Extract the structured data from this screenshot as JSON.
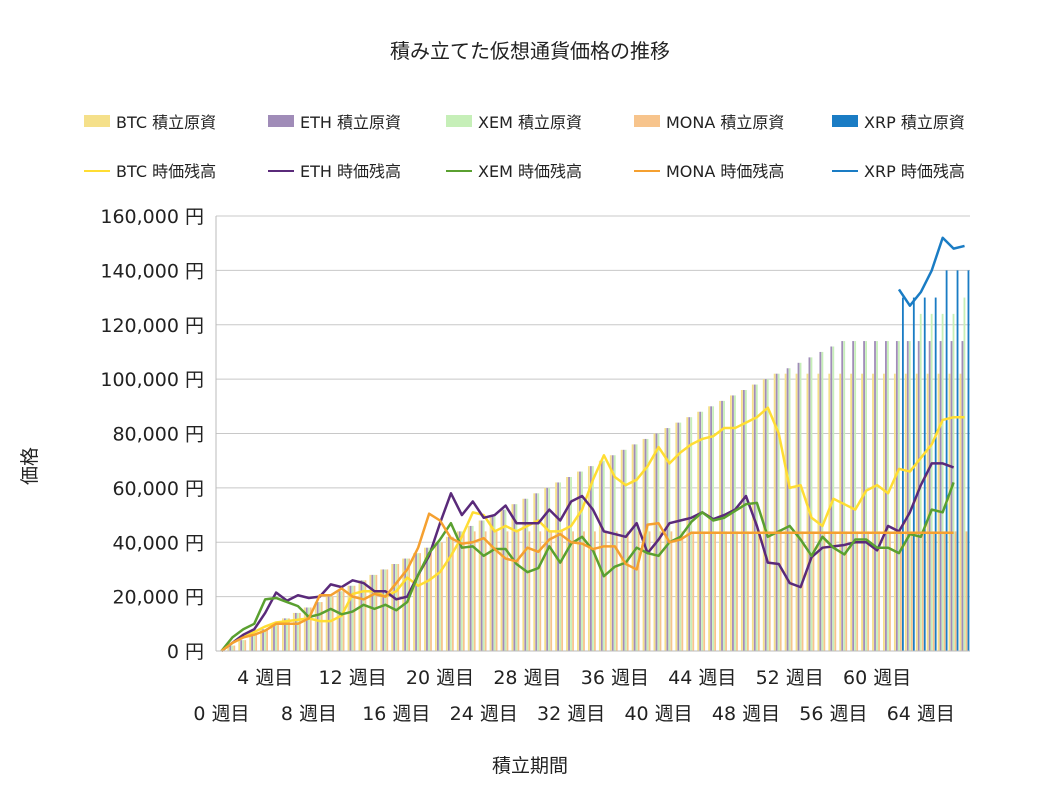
{
  "chart_data": {
    "type": "bar+line",
    "title": "積み立てた仮想通貨価格の推移",
    "xlabel": "積立期間",
    "ylabel": "価格",
    "ylim": [
      0,
      160000
    ],
    "y_ticks": [
      0,
      20000,
      40000,
      60000,
      80000,
      100000,
      120000,
      140000,
      160000
    ],
    "y_tick_labels": [
      "0 円",
      "20,000 円",
      "40,000 円",
      "60,000 円",
      "80,000 円",
      "100,000 円",
      "120,000 円",
      "140,000 円",
      "160,000 円"
    ],
    "x_tick_labels_upper": [
      "4 週目",
      "12 週目",
      "20 週目",
      "28 週目",
      "36 週目",
      "44 週目",
      "52 週目",
      "60 週目"
    ],
    "x_tick_labels_lower": [
      "0 週目",
      "8 週目",
      "16 週目",
      "24 週目",
      "32 週目",
      "40 週目",
      "48 週目",
      "56 週目",
      "64 週目"
    ],
    "grid": "horizontal",
    "legend_position": "top",
    "weeks": [
      0,
      1,
      2,
      3,
      4,
      5,
      6,
      7,
      8,
      9,
      10,
      11,
      12,
      13,
      14,
      15,
      16,
      17,
      18,
      19,
      20,
      21,
      22,
      23,
      24,
      25,
      26,
      27,
      28,
      29,
      30,
      31,
      32,
      33,
      34,
      35,
      36,
      37,
      38,
      39,
      40,
      41,
      42,
      43,
      44,
      45,
      46,
      47,
      48,
      49,
      50,
      51,
      52,
      53,
      54,
      55,
      56,
      57,
      58,
      59,
      60,
      61,
      62,
      63,
      64,
      65,
      66,
      67,
      68
    ],
    "bar_series": [
      {
        "name": "BTC  積立原資",
        "color": "#f5e08a",
        "values": [
          0,
          2000,
          4000,
          6000,
          8000,
          10000,
          12000,
          14000,
          16000,
          18000,
          20000,
          22000,
          24000,
          26000,
          28000,
          30000,
          32000,
          34000,
          36000,
          38000,
          40000,
          42000,
          44000,
          46000,
          48000,
          50000,
          52000,
          54000,
          56000,
          58000,
          60000,
          62000,
          64000,
          66000,
          68000,
          70000,
          72000,
          74000,
          76000,
          78000,
          80000,
          82000,
          84000,
          86000,
          88000,
          90000,
          92000,
          94000,
          96000,
          98000,
          100000,
          102000,
          102000,
          102000,
          102000,
          102000,
          102000,
          102000,
          102000,
          102000,
          102000,
          102000,
          102000,
          102000,
          102000,
          102000,
          102000,
          102000,
          102000
        ]
      },
      {
        "name": "ETH  積立原資",
        "color": "#a08cb8",
        "values": [
          0,
          2000,
          4000,
          6000,
          8000,
          10000,
          12000,
          14000,
          16000,
          18000,
          20000,
          22000,
          24000,
          26000,
          28000,
          30000,
          32000,
          34000,
          36000,
          38000,
          40000,
          42000,
          44000,
          46000,
          48000,
          50000,
          52000,
          54000,
          56000,
          58000,
          60000,
          62000,
          64000,
          66000,
          68000,
          70000,
          72000,
          74000,
          76000,
          78000,
          80000,
          82000,
          84000,
          86000,
          88000,
          90000,
          92000,
          94000,
          96000,
          98000,
          100000,
          102000,
          104000,
          106000,
          108000,
          110000,
          112000,
          114000,
          114000,
          114000,
          114000,
          114000,
          114000,
          114000,
          114000,
          114000,
          114000,
          114000,
          114000
        ]
      },
      {
        "name": "XEM  積立原資",
        "color": "#c6efb8",
        "values": [
          0,
          2000,
          4000,
          6000,
          8000,
          10000,
          12000,
          14000,
          16000,
          18000,
          20000,
          22000,
          24000,
          26000,
          28000,
          30000,
          32000,
          34000,
          36000,
          38000,
          40000,
          42000,
          44000,
          46000,
          48000,
          50000,
          52000,
          54000,
          56000,
          58000,
          60000,
          62000,
          64000,
          66000,
          68000,
          70000,
          72000,
          74000,
          76000,
          78000,
          80000,
          82000,
          84000,
          86000,
          88000,
          90000,
          92000,
          94000,
          96000,
          98000,
          100000,
          102000,
          104000,
          106000,
          108000,
          110000,
          112000,
          114000,
          114000,
          114000,
          114000,
          114000,
          114000,
          114000,
          124000,
          124000,
          124000,
          124000,
          130000
        ]
      },
      {
        "name": "MONA  積立原資",
        "color": "#f7c48c",
        "values": [
          0,
          2000,
          4000,
          6000,
          8000,
          10000,
          12000,
          14000,
          16000,
          18000,
          20000,
          22000,
          24000,
          26000,
          28000,
          30000,
          32000,
          34000,
          36000,
          38000,
          40000,
          42000,
          44000,
          44000,
          44000,
          44000,
          44000,
          44000,
          44000,
          44000,
          44000,
          44000,
          44000,
          44000,
          44000,
          44000,
          44000,
          44000,
          44000,
          44000,
          44000,
          44000,
          44000,
          44000,
          44000,
          44000,
          44000,
          44000,
          44000,
          44000,
          44000,
          44000,
          44000,
          44000,
          44000,
          44000,
          44000,
          44000,
          44000,
          44000,
          44000,
          44000,
          44000,
          44000,
          44000,
          44000,
          44000,
          44000,
          44000
        ]
      },
      {
        "name": "XRP  積立原資",
        "color": "#1a7cc4",
        "values": [
          null,
          null,
          null,
          null,
          null,
          null,
          null,
          null,
          null,
          null,
          null,
          null,
          null,
          null,
          null,
          null,
          null,
          null,
          null,
          null,
          null,
          null,
          null,
          null,
          null,
          null,
          null,
          null,
          null,
          null,
          null,
          null,
          null,
          null,
          null,
          null,
          null,
          null,
          null,
          null,
          null,
          null,
          null,
          null,
          null,
          null,
          null,
          null,
          null,
          null,
          null,
          null,
          null,
          null,
          null,
          null,
          null,
          null,
          null,
          null,
          null,
          null,
          130000,
          130000,
          130000,
          130000,
          140000,
          140000,
          140000
        ]
      }
    ],
    "line_series": [
      {
        "name": "BTC  時価残高",
        "color": "#ffdd33",
        "values": [
          0,
          3000,
          5000,
          7000,
          9000,
          10500,
          11000,
          11500,
          12000,
          11000,
          11000,
          13000,
          21000,
          22000,
          22000,
          20000,
          22000,
          27000,
          24000,
          26000,
          29000,
          35000,
          42000,
          51000,
          50000,
          44000,
          46000,
          44000,
          46000,
          48000,
          44000,
          44000,
          46000,
          52000,
          63000,
          72000,
          64000,
          61000,
          63000,
          68000,
          75000,
          69000,
          73000,
          76000,
          78000,
          79000,
          82000,
          82000,
          84000,
          86000,
          89500,
          80000,
          60000,
          61000,
          49000,
          46000,
          56000,
          54000,
          52000,
          59000,
          61000,
          58000,
          67000,
          66000,
          71000,
          76000,
          85000,
          86000,
          86000
        ]
      },
      {
        "name": "ETH  時価残高",
        "color": "#5a2a7a",
        "values": [
          0,
          3000,
          6000,
          8000,
          14000,
          21500,
          18500,
          20500,
          19500,
          20000,
          24500,
          23500,
          26000,
          25000,
          22000,
          22000,
          19000,
          20000,
          28000,
          35000,
          47000,
          58000,
          50000,
          55000,
          49000,
          50000,
          53500,
          47000,
          47000,
          47000,
          52000,
          48000,
          55000,
          57000,
          52000,
          44000,
          43000,
          42000,
          47000,
          36000,
          41000,
          47000,
          48000,
          49000,
          51000,
          48500,
          50000,
          52000,
          57000,
          46000,
          32500,
          32000,
          25000,
          23500,
          34500,
          38000,
          38500,
          39000,
          40000,
          40000,
          37000,
          46000,
          44000,
          51000,
          61000,
          69000,
          69000,
          67500,
          null
        ]
      },
      {
        "name": "XEM  時価残高",
        "color": "#5aa030",
        "values": [
          0,
          5000,
          8000,
          10000,
          19000,
          19500,
          18000,
          16500,
          12500,
          13500,
          15500,
          13500,
          14500,
          17000,
          15500,
          17000,
          15000,
          18000,
          28000,
          36000,
          41000,
          47000,
          38000,
          38500,
          35000,
          37500,
          37500,
          32000,
          29000,
          30500,
          38500,
          32500,
          39500,
          42000,
          37000,
          27500,
          31000,
          32500,
          38000,
          36000,
          35000,
          40000,
          42000,
          47500,
          51000,
          48000,
          49000,
          51500,
          54000,
          54500,
          42000,
          44000,
          46000,
          41000,
          35000,
          42000,
          38000,
          35500,
          41000,
          41000,
          38000,
          38000,
          36000,
          43000,
          42000,
          52000,
          51000,
          62000,
          null
        ]
      },
      {
        "name": "MONA  時価残高",
        "color": "#f5a030",
        "values": [
          0,
          3000,
          5000,
          6000,
          7500,
          10000,
          10000,
          10000,
          12000,
          20500,
          20500,
          23000,
          20000,
          19000,
          21000,
          20000,
          25000,
          30000,
          38000,
          50500,
          48000,
          41500,
          39500,
          40000,
          41500,
          37500,
          34000,
          33000,
          38000,
          36500,
          41000,
          43000,
          40000,
          39500,
          37500,
          38500,
          38500,
          32000,
          30000,
          46500,
          47000,
          40000,
          41000,
          43500,
          43500,
          43500,
          43500,
          43500,
          43500,
          43500,
          43500,
          43500,
          43500,
          43500,
          43500,
          43500,
          43500,
          43500,
          43500,
          43500,
          43500,
          43500,
          43500,
          43500,
          43500,
          43500,
          43500,
          43500,
          null
        ]
      },
      {
        "name": "XRP  時価残高",
        "color": "#1a7cc4",
        "values": [
          null,
          null,
          null,
          null,
          null,
          null,
          null,
          null,
          null,
          null,
          null,
          null,
          null,
          null,
          null,
          null,
          null,
          null,
          null,
          null,
          null,
          null,
          null,
          null,
          null,
          null,
          null,
          null,
          null,
          null,
          null,
          null,
          null,
          null,
          null,
          null,
          null,
          null,
          null,
          null,
          null,
          null,
          null,
          null,
          null,
          null,
          null,
          null,
          null,
          null,
          null,
          null,
          null,
          null,
          null,
          null,
          null,
          null,
          null,
          null,
          null,
          null,
          133000,
          127000,
          132000,
          140000,
          152000,
          148000,
          149000
        ]
      }
    ]
  }
}
